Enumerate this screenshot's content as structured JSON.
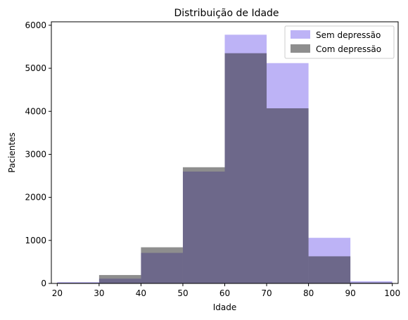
{
  "chart_data": {
    "type": "bar",
    "title": "Distribuição de Idade",
    "xlabel": "Idade",
    "ylabel": "Pacientes",
    "bin_edges": [
      20,
      30,
      40,
      50,
      60,
      70,
      80,
      90,
      100
    ],
    "x_ticks": [
      20,
      30,
      40,
      50,
      60,
      70,
      80,
      90,
      100
    ],
    "y_ticks": [
      0,
      1000,
      2000,
      3000,
      4000,
      5000,
      6000
    ],
    "xlim": [
      18.6,
      101.4
    ],
    "ylim": [
      0,
      6080
    ],
    "grid": false,
    "legend_position": "top-right",
    "series": [
      {
        "name": "Sem depressão",
        "color": "#7b68ee",
        "opacity": 0.5,
        "values": [
          30,
          110,
          710,
          2600,
          5780,
          5120,
          1060,
          50
        ]
      },
      {
        "name": "Com depressão",
        "color": "#1e1e1e",
        "opacity": 0.5,
        "values": [
          15,
          195,
          840,
          2700,
          5350,
          4070,
          630,
          20
        ]
      }
    ]
  }
}
